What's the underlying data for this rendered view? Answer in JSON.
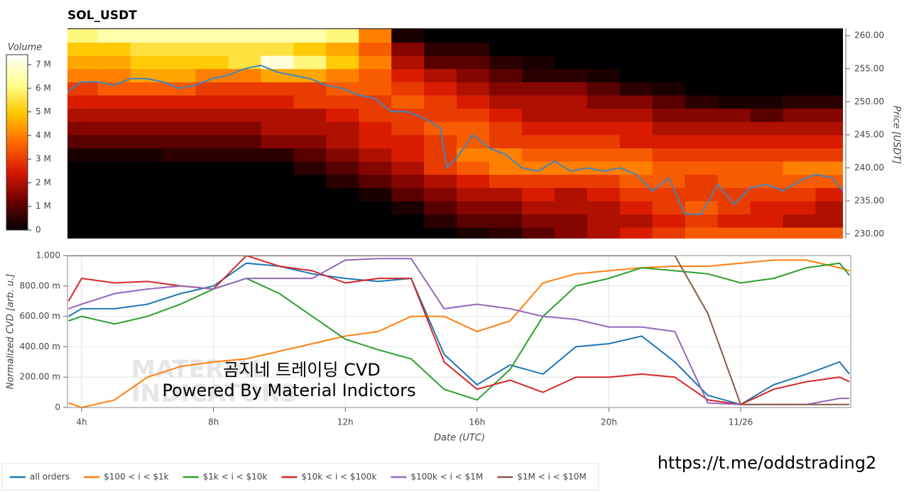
{
  "chart_data": [
    {
      "type": "heatmap",
      "title": "SOL_USDT",
      "zlabel": "Volume",
      "ylabel": "Price [USDT]",
      "xlim": [
        3.57,
        27.34
      ],
      "x_bins": [
        3.5,
        4.5,
        5.5,
        6.5,
        7.5,
        8.5,
        9.5,
        10.5,
        11.5,
        12.5,
        13.5,
        14.5,
        15.5,
        16.5,
        17.5,
        18.5,
        19.5,
        20.5,
        21.5,
        22.5,
        23.5,
        24.5,
        25.5,
        26.5,
        27.5
      ],
      "y_bins": [
        229,
        231,
        233,
        235,
        237,
        239,
        241,
        243,
        245,
        247,
        249,
        251,
        253,
        255,
        257,
        259,
        261
      ],
      "z": [
        [
          0,
          0,
          0,
          0,
          0,
          0,
          0,
          0,
          0,
          0,
          0,
          0,
          0.3,
          0.5,
          1,
          1.5,
          2,
          2.5,
          3,
          3.5,
          3.5,
          3.5,
          3.5,
          3.5
        ],
        [
          0,
          0,
          0,
          0,
          0,
          0,
          0,
          0,
          0,
          0,
          0,
          0.5,
          1,
          1,
          1.5,
          1.5,
          2,
          2,
          2.5,
          3,
          2.5,
          2.5,
          2,
          2
        ],
        [
          0,
          0,
          0,
          0,
          0,
          0,
          0,
          0,
          0,
          0,
          0.3,
          1,
          1.5,
          1.5,
          2,
          2,
          2,
          2.5,
          3,
          3.5,
          3,
          2.5,
          2.5,
          2
        ],
        [
          0,
          0,
          0,
          0,
          0,
          0,
          0,
          0,
          0,
          0.3,
          1,
          1.5,
          2,
          2,
          2.5,
          2,
          2.5,
          3,
          3,
          3,
          3,
          3,
          3,
          2.5
        ],
        [
          0,
          0,
          0,
          0,
          0,
          0,
          0,
          0,
          0.5,
          1,
          1.5,
          2,
          2.5,
          3,
          3,
          3,
          3,
          3.5,
          3.5,
          3,
          3.5,
          3.5,
          3.5,
          3.5
        ],
        [
          0,
          0,
          0,
          0,
          0,
          0,
          0,
          0.5,
          1,
          1.5,
          2,
          3,
          3.5,
          4,
          4,
          4,
          4,
          4,
          3.5,
          3.5,
          3.5,
          3.5,
          4,
          4
        ],
        [
          0.3,
          0.3,
          0.3,
          0.5,
          0.5,
          0.5,
          0.5,
          1,
          1.5,
          2,
          2.5,
          3,
          4,
          4,
          3.5,
          3.5,
          3.5,
          3.5,
          3,
          3,
          3,
          3,
          3,
          3
        ],
        [
          1,
          1,
          1,
          1,
          1,
          1,
          1.5,
          1.5,
          2,
          2.5,
          2.5,
          3,
          3.5,
          3,
          3,
          3,
          3,
          2.5,
          2.5,
          2.5,
          2.5,
          2.5,
          2.5,
          2.5
        ],
        [
          1.5,
          1.5,
          1.5,
          1.5,
          1.5,
          1.5,
          2,
          2,
          2,
          2.5,
          3,
          3.5,
          3.5,
          3,
          2.5,
          2.5,
          2.5,
          2.5,
          2,
          2,
          2,
          2,
          2,
          2
        ],
        [
          2,
          2,
          2,
          2,
          2,
          2,
          2,
          2,
          2.5,
          3,
          3,
          3,
          3,
          2.5,
          2,
          2,
          2,
          2,
          1.5,
          1.5,
          1.5,
          1,
          1.5,
          1.5
        ],
        [
          2.5,
          2.5,
          2.5,
          2.5,
          2.5,
          2.5,
          2.5,
          3,
          3,
          3,
          3.5,
          3,
          2.5,
          2,
          2,
          2,
          1.5,
          1.5,
          1,
          0.5,
          0.3,
          0.3,
          0.5,
          0.5
        ],
        [
          3,
          3.5,
          3.5,
          3.5,
          3,
          3,
          3,
          3,
          3.5,
          3.5,
          3,
          2.5,
          2,
          1.5,
          1.5,
          1.5,
          1,
          0.5,
          0.3,
          0,
          0,
          0,
          0,
          0
        ],
        [
          4,
          4,
          4.5,
          4.5,
          4,
          4,
          4.5,
          4.5,
          4,
          3.5,
          2.5,
          2,
          1.5,
          1,
          0.5,
          0.5,
          0.3,
          0,
          0,
          0,
          0,
          0,
          0,
          0
        ],
        [
          4.5,
          4.5,
          5,
          5,
          5,
          5.5,
          7,
          6,
          5,
          4,
          2,
          1,
          1,
          0.5,
          0.3,
          0,
          0,
          0,
          0,
          0,
          0,
          0,
          0,
          0
        ],
        [
          5,
          5,
          5.5,
          5.5,
          5.5,
          5.5,
          5.5,
          5,
          4.5,
          3.5,
          1.5,
          0.5,
          0.5,
          0,
          0,
          0,
          0,
          0,
          0,
          0,
          0,
          0,
          0,
          0
        ],
        [
          6,
          6.5,
          6.5,
          6.5,
          6.5,
          6.5,
          6.5,
          6.5,
          6,
          4,
          0.3,
          0,
          0,
          0,
          0,
          0,
          0,
          0,
          0,
          0,
          0,
          0,
          0,
          0
        ]
      ],
      "zlim": [
        0,
        7.42
      ],
      "zticks": [
        0,
        {
          "value": 1,
          "label": "1 M"
        },
        {
          "value": 2,
          "label": "2 M"
        },
        {
          "value": 3,
          "label": "3 M"
        },
        {
          "value": 4,
          "label": "4 M"
        },
        {
          "value": 5,
          "label": "5 M"
        },
        {
          "value": 6,
          "label": "6 M"
        },
        {
          "value": 7,
          "label": "7 M"
        }
      ],
      "colormap": [
        "#000000",
        "#6e0000",
        "#d81a00",
        "#ff6a00",
        "#ffc800",
        "#ffff90",
        "#ffffff"
      ],
      "ylim": [
        229.3,
        261.1
      ],
      "yticks": [
        {
          "value": 230,
          "label": "230.00"
        },
        {
          "value": 235,
          "label": "235.00"
        },
        {
          "value": 240,
          "label": "240.00"
        },
        {
          "value": 245,
          "label": "245.00"
        },
        {
          "value": 250,
          "label": "250.00"
        },
        {
          "value": 255,
          "label": "255.00"
        },
        {
          "value": 260,
          "label": "260.00"
        }
      ],
      "line": {
        "color": "#3f86c0",
        "x": [
          3.57,
          4,
          4.5,
          5,
          5.5,
          6,
          6.5,
          7,
          7.5,
          8,
          8.5,
          9,
          9.5,
          10,
          10.5,
          11,
          11.5,
          12,
          12.5,
          13,
          13.5,
          14,
          14.5,
          15,
          15.2,
          15.5,
          16,
          16.5,
          17,
          17.5,
          18,
          18.5,
          19,
          19.5,
          20,
          20.5,
          21,
          21.5,
          22,
          22.5,
          23,
          23.5,
          24,
          24.5,
          25,
          25.5,
          26,
          26.5,
          27,
          27.34
        ],
        "values": [
          251.5,
          253,
          253,
          252.5,
          253.5,
          253.5,
          253,
          252,
          252.5,
          253.5,
          254,
          255,
          255.5,
          254.5,
          254,
          253.5,
          252.5,
          252,
          251,
          250.5,
          248.5,
          248.5,
          247.5,
          246,
          240,
          241.5,
          245,
          243,
          242,
          240,
          239.5,
          241,
          239.5,
          240,
          239.5,
          240,
          239,
          236.5,
          238.5,
          233,
          233,
          237.5,
          234.5,
          237,
          237.5,
          236.5,
          238,
          239,
          238.5,
          236.5
        ]
      }
    },
    {
      "type": "line",
      "ylabel": "Normalized CVD [arb. u.]",
      "xlabel": "Date (UTC)",
      "xlim": [
        3.57,
        27.34
      ],
      "xticks": [
        {
          "value": 4,
          "label": "4h"
        },
        {
          "value": 8,
          "label": "8h"
        },
        {
          "value": 12,
          "label": "12h"
        },
        {
          "value": 16,
          "label": "16h"
        },
        {
          "value": 20,
          "label": "20h"
        },
        {
          "value": 24,
          "label": "11/26"
        }
      ],
      "ylim": [
        0,
        1.0
      ],
      "yticks": [
        0,
        {
          "value": 0.2,
          "label": "200.00 m"
        },
        {
          "value": 0.4,
          "label": "400.00 m"
        },
        {
          "value": 0.6,
          "label": "600.00 m"
        },
        {
          "value": 0.8,
          "label": "800.00 m"
        },
        {
          "value": 1,
          "label": "1.000"
        }
      ],
      "grid": true,
      "x": [
        3.6,
        4,
        5,
        6,
        7,
        8,
        9,
        10,
        11,
        12,
        13,
        14,
        15,
        16,
        17,
        18,
        19,
        20,
        21,
        22,
        23,
        24,
        25,
        26,
        27,
        27.3
      ],
      "series": [
        {
          "name": "all orders",
          "color": "#1f77b4",
          "values": [
            0.6,
            0.65,
            0.65,
            0.68,
            0.75,
            0.8,
            0.95,
            0.93,
            0.88,
            0.85,
            0.83,
            0.85,
            0.35,
            0.15,
            0.28,
            0.22,
            0.4,
            0.42,
            0.47,
            0.3,
            0.08,
            0.02,
            0.15,
            0.22,
            0.3,
            0.22
          ]
        },
        {
          "name": "$100 < i < $1k",
          "color": "#ff7f0e",
          "values": [
            0.03,
            0,
            0.05,
            0.2,
            0.27,
            0.3,
            0.32,
            0.37,
            0.42,
            0.47,
            0.5,
            0.6,
            0.6,
            0.5,
            0.57,
            0.82,
            0.88,
            0.9,
            0.92,
            0.93,
            0.93,
            0.95,
            0.97,
            0.97,
            0.92,
            0.9
          ]
        },
        {
          "name": "$1k < i < $10k",
          "color": "#2ca02c",
          "values": [
            0.57,
            0.6,
            0.55,
            0.6,
            0.68,
            0.78,
            0.85,
            0.75,
            0.6,
            0.45,
            0.38,
            0.32,
            0.12,
            0.05,
            0.25,
            0.6,
            0.8,
            0.85,
            0.92,
            0.9,
            0.88,
            0.82,
            0.85,
            0.92,
            0.95,
            0.87
          ]
        },
        {
          "name": "$10k < i < $100k",
          "color": "#d62728",
          "values": [
            0.7,
            0.85,
            0.82,
            0.83,
            0.8,
            0.78,
            1,
            0.93,
            0.9,
            0.82,
            0.85,
            0.85,
            0.3,
            0.12,
            0.18,
            0.1,
            0.2,
            0.2,
            0.22,
            0.2,
            0.05,
            0.02,
            0.12,
            0.17,
            0.2,
            0.17
          ]
        },
        {
          "name": "$100k < i < $1M",
          "color": "#9467bd",
          "values": [
            0.65,
            0.68,
            0.75,
            0.78,
            0.8,
            0.78,
            0.85,
            0.85,
            0.85,
            0.97,
            0.98,
            0.98,
            0.65,
            0.68,
            0.65,
            0.6,
            0.58,
            0.53,
            0.53,
            0.5,
            0.03,
            0.02,
            0.02,
            0.02,
            0.06,
            0.06
          ]
        },
        {
          "name": "$1M < i < $10M",
          "color": "#8c564b",
          "values": [
            1,
            1,
            1,
            1,
            1,
            1,
            1,
            1,
            1,
            1,
            1,
            1,
            1,
            1,
            1,
            1,
            1,
            1,
            1,
            1,
            0.62,
            0.02,
            0.02,
            0.02,
            0.02,
            0.02
          ]
        }
      ],
      "legend": "bottom-left"
    }
  ],
  "watermark": {
    "line1": "곰지네 트레이딩 CVD",
    "line2": "Powered By Material Indictors",
    "logo": [
      "MATERIAL",
      "INDICATORS"
    ]
  },
  "url": "https://t.me/oddstrading2"
}
